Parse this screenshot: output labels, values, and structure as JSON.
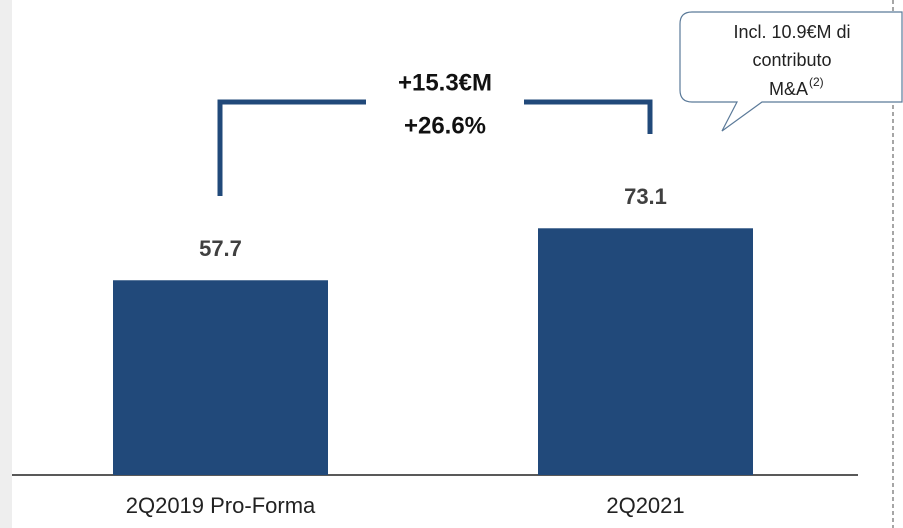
{
  "chart_data": {
    "type": "bar",
    "categories": [
      "2Q2019 Pro-Forma",
      "2Q2021"
    ],
    "values": [
      57.7,
      73.1
    ],
    "color": "#21497a",
    "ylim": [
      0,
      140
    ],
    "annotations": [
      "+15.3€M",
      "+26.6%"
    ],
    "callout": [
      "Incl. 10.9€M di",
      "contributo",
      "M&A",
      "(2)"
    ]
  }
}
